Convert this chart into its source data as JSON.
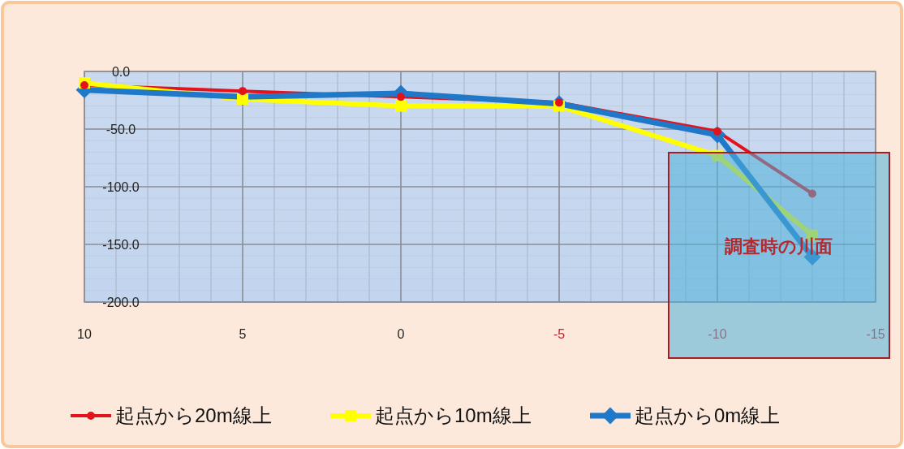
{
  "chart_data": {
    "type": "line",
    "x": [
      10,
      5,
      0,
      -5,
      -10,
      -13
    ],
    "xlim": [
      10,
      -15
    ],
    "xticks": [
      10,
      5,
      0,
      -5,
      -10,
      -15
    ],
    "ylim": [
      -200,
      0
    ],
    "yticks": [
      {
        "value": 0,
        "label": "0.0"
      },
      {
        "value": -50,
        "label": "-50.0"
      },
      {
        "value": -100,
        "label": "-100.0"
      },
      {
        "value": -150,
        "label": "-150.0"
      },
      {
        "value": -200,
        "label": "-200.0"
      }
    ],
    "grid": true,
    "legend": "bottom",
    "series": [
      {
        "name": "起点から20m線上",
        "color": "#e3121b",
        "marker": "circle",
        "values": [
          -12,
          -17,
          -22,
          -27,
          -52,
          -106
        ]
      },
      {
        "name": "起点から10m線上",
        "color": "#ffff00",
        "marker": "square",
        "values": [
          -10,
          -24,
          -30,
          -30,
          -73,
          -142
        ]
      },
      {
        "name": "起点から0m線上",
        "color": "#1f78c8",
        "marker": "diamond",
        "values": [
          -16,
          -22,
          -19,
          -28,
          -55,
          -161
        ]
      }
    ],
    "annotations": [
      "調査時の川面"
    ]
  }
}
